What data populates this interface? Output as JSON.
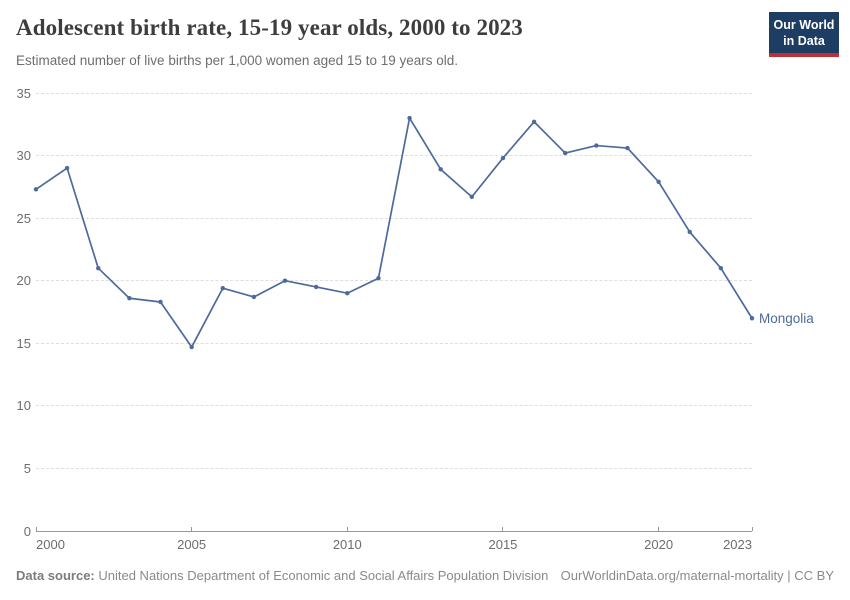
{
  "header": {
    "title": "Adolescent birth rate, 15-19 year olds, 2000 to 2023",
    "subtitle": "Estimated number of live births per 1,000 women aged 15 to 19 years old.",
    "logo": {
      "line1": "Our World",
      "line2": "in Data",
      "bg_color": "#1d3d63",
      "accent_color": "#bd3039"
    }
  },
  "chart_data": {
    "type": "line",
    "title": "Adolescent birth rate, 15-19 year olds, 2000 to 2023",
    "x": [
      2000,
      2001,
      2002,
      2003,
      2004,
      2005,
      2006,
      2007,
      2008,
      2009,
      2010,
      2011,
      2012,
      2013,
      2014,
      2015,
      2016,
      2017,
      2018,
      2019,
      2020,
      2021,
      2022,
      2023
    ],
    "series": [
      {
        "name": "Mongolia",
        "color": "#4c6a9c",
        "values": [
          27.3,
          29.0,
          21.0,
          18.6,
          18.3,
          14.7,
          19.4,
          18.7,
          20.0,
          19.5,
          19.0,
          20.2,
          33.0,
          28.9,
          26.7,
          29.8,
          32.7,
          30.2,
          30.8,
          30.6,
          27.9,
          23.9,
          21.0,
          17.0
        ]
      }
    ],
    "xlabel": "",
    "ylabel": "",
    "ylim": [
      0,
      35
    ],
    "yticks": [
      0,
      5,
      10,
      15,
      20,
      25,
      30,
      35
    ],
    "xticks": [
      2000,
      2005,
      2010,
      2015,
      2020,
      2023
    ],
    "grid": "horizontal-dashed",
    "legend_position": "end-of-line-label",
    "entity_label": "Mongolia",
    "gridline_color": "#dedede",
    "axis_color": "#999999",
    "tick_label_color": "#6d6d6d"
  },
  "footer": {
    "source_label": "Data source:",
    "source_text": " United Nations Department of Economic and Social Affairs Population Division",
    "citation_text": "OurWorldinData.org/maternal-mortality | CC BY"
  }
}
